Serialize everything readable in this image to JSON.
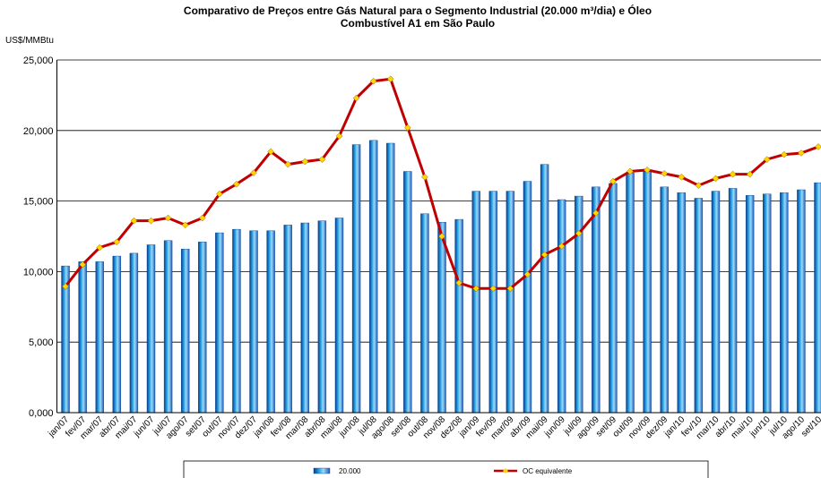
{
  "chart_data": {
    "type": "bar_line",
    "title": [
      "Comparativo de Preços entre Gás Natural para o Segmento Industrial (20.000 m³/dia) e Óleo",
      "Combustível A1 em São Paulo"
    ],
    "y_label": "US$/MMBtu",
    "categories": [
      "jan/07",
      "fev/07",
      "mar/07",
      "abr/07",
      "mai/07",
      "jun/07",
      "jul/07",
      "ago/07",
      "set/07",
      "out/07",
      "nov/07",
      "dez/07",
      "jan/08",
      "fev/08",
      "mar/08",
      "abr/08",
      "mai/08",
      "jun/08",
      "jul/08",
      "ago/08",
      "set/08",
      "out/08",
      "nov/08",
      "dez/08",
      "jan/09",
      "fev/09",
      "mar/09",
      "abr/09",
      "mai/09",
      "jun/09",
      "jul/09",
      "ago/09",
      "set/09",
      "out/09",
      "nov/09",
      "dez/09",
      "jan/10",
      "fev/10",
      "mar/10",
      "abr/10",
      "mai/10",
      "jun/10",
      "jul/10",
      "ago/10",
      "set/10"
    ],
    "series": [
      {
        "name": "20.000",
        "kind": "bar",
        "color": "#1f8fd6",
        "values": [
          10.4,
          10.7,
          10.7,
          11.1,
          11.3,
          11.9,
          12.2,
          11.6,
          12.1,
          12.75,
          13.0,
          12.9,
          12.9,
          13.3,
          13.45,
          13.6,
          13.8,
          19.0,
          19.3,
          19.1,
          17.1,
          14.1,
          13.5,
          13.7,
          15.7,
          15.7,
          15.7,
          16.4,
          17.6,
          15.1,
          15.35,
          16.0,
          16.25,
          17.0,
          17.1,
          16.0,
          15.6,
          15.2,
          15.7,
          15.9,
          15.4,
          15.5,
          15.6,
          15.8,
          16.3
        ]
      },
      {
        "name": "OC equivalente",
        "kind": "line",
        "color": "#c00000",
        "marker_color": "#ffd700",
        "values": [
          8.95,
          10.5,
          11.7,
          12.1,
          13.6,
          13.6,
          13.8,
          13.3,
          13.8,
          15.5,
          16.2,
          17.0,
          18.5,
          17.6,
          17.8,
          17.95,
          19.6,
          22.3,
          23.5,
          23.65,
          20.2,
          16.7,
          12.5,
          9.2,
          8.8,
          8.8,
          8.8,
          9.8,
          11.2,
          11.8,
          12.7,
          14.15,
          16.4,
          17.1,
          17.2,
          16.95,
          16.7,
          16.1,
          16.6,
          16.9,
          16.9,
          17.95,
          18.3,
          18.4,
          18.85
        ]
      }
    ],
    "ylim": [
      0,
      25
    ],
    "yticks": [
      {
        "value": 0,
        "label": "0,000"
      },
      {
        "value": 5,
        "label": "5,000"
      },
      {
        "value": 10,
        "label": "10,000"
      },
      {
        "value": 15,
        "label": "15,000"
      },
      {
        "value": 20,
        "label": "20,000"
      },
      {
        "value": 25,
        "label": "25,000"
      }
    ],
    "grid": true
  }
}
